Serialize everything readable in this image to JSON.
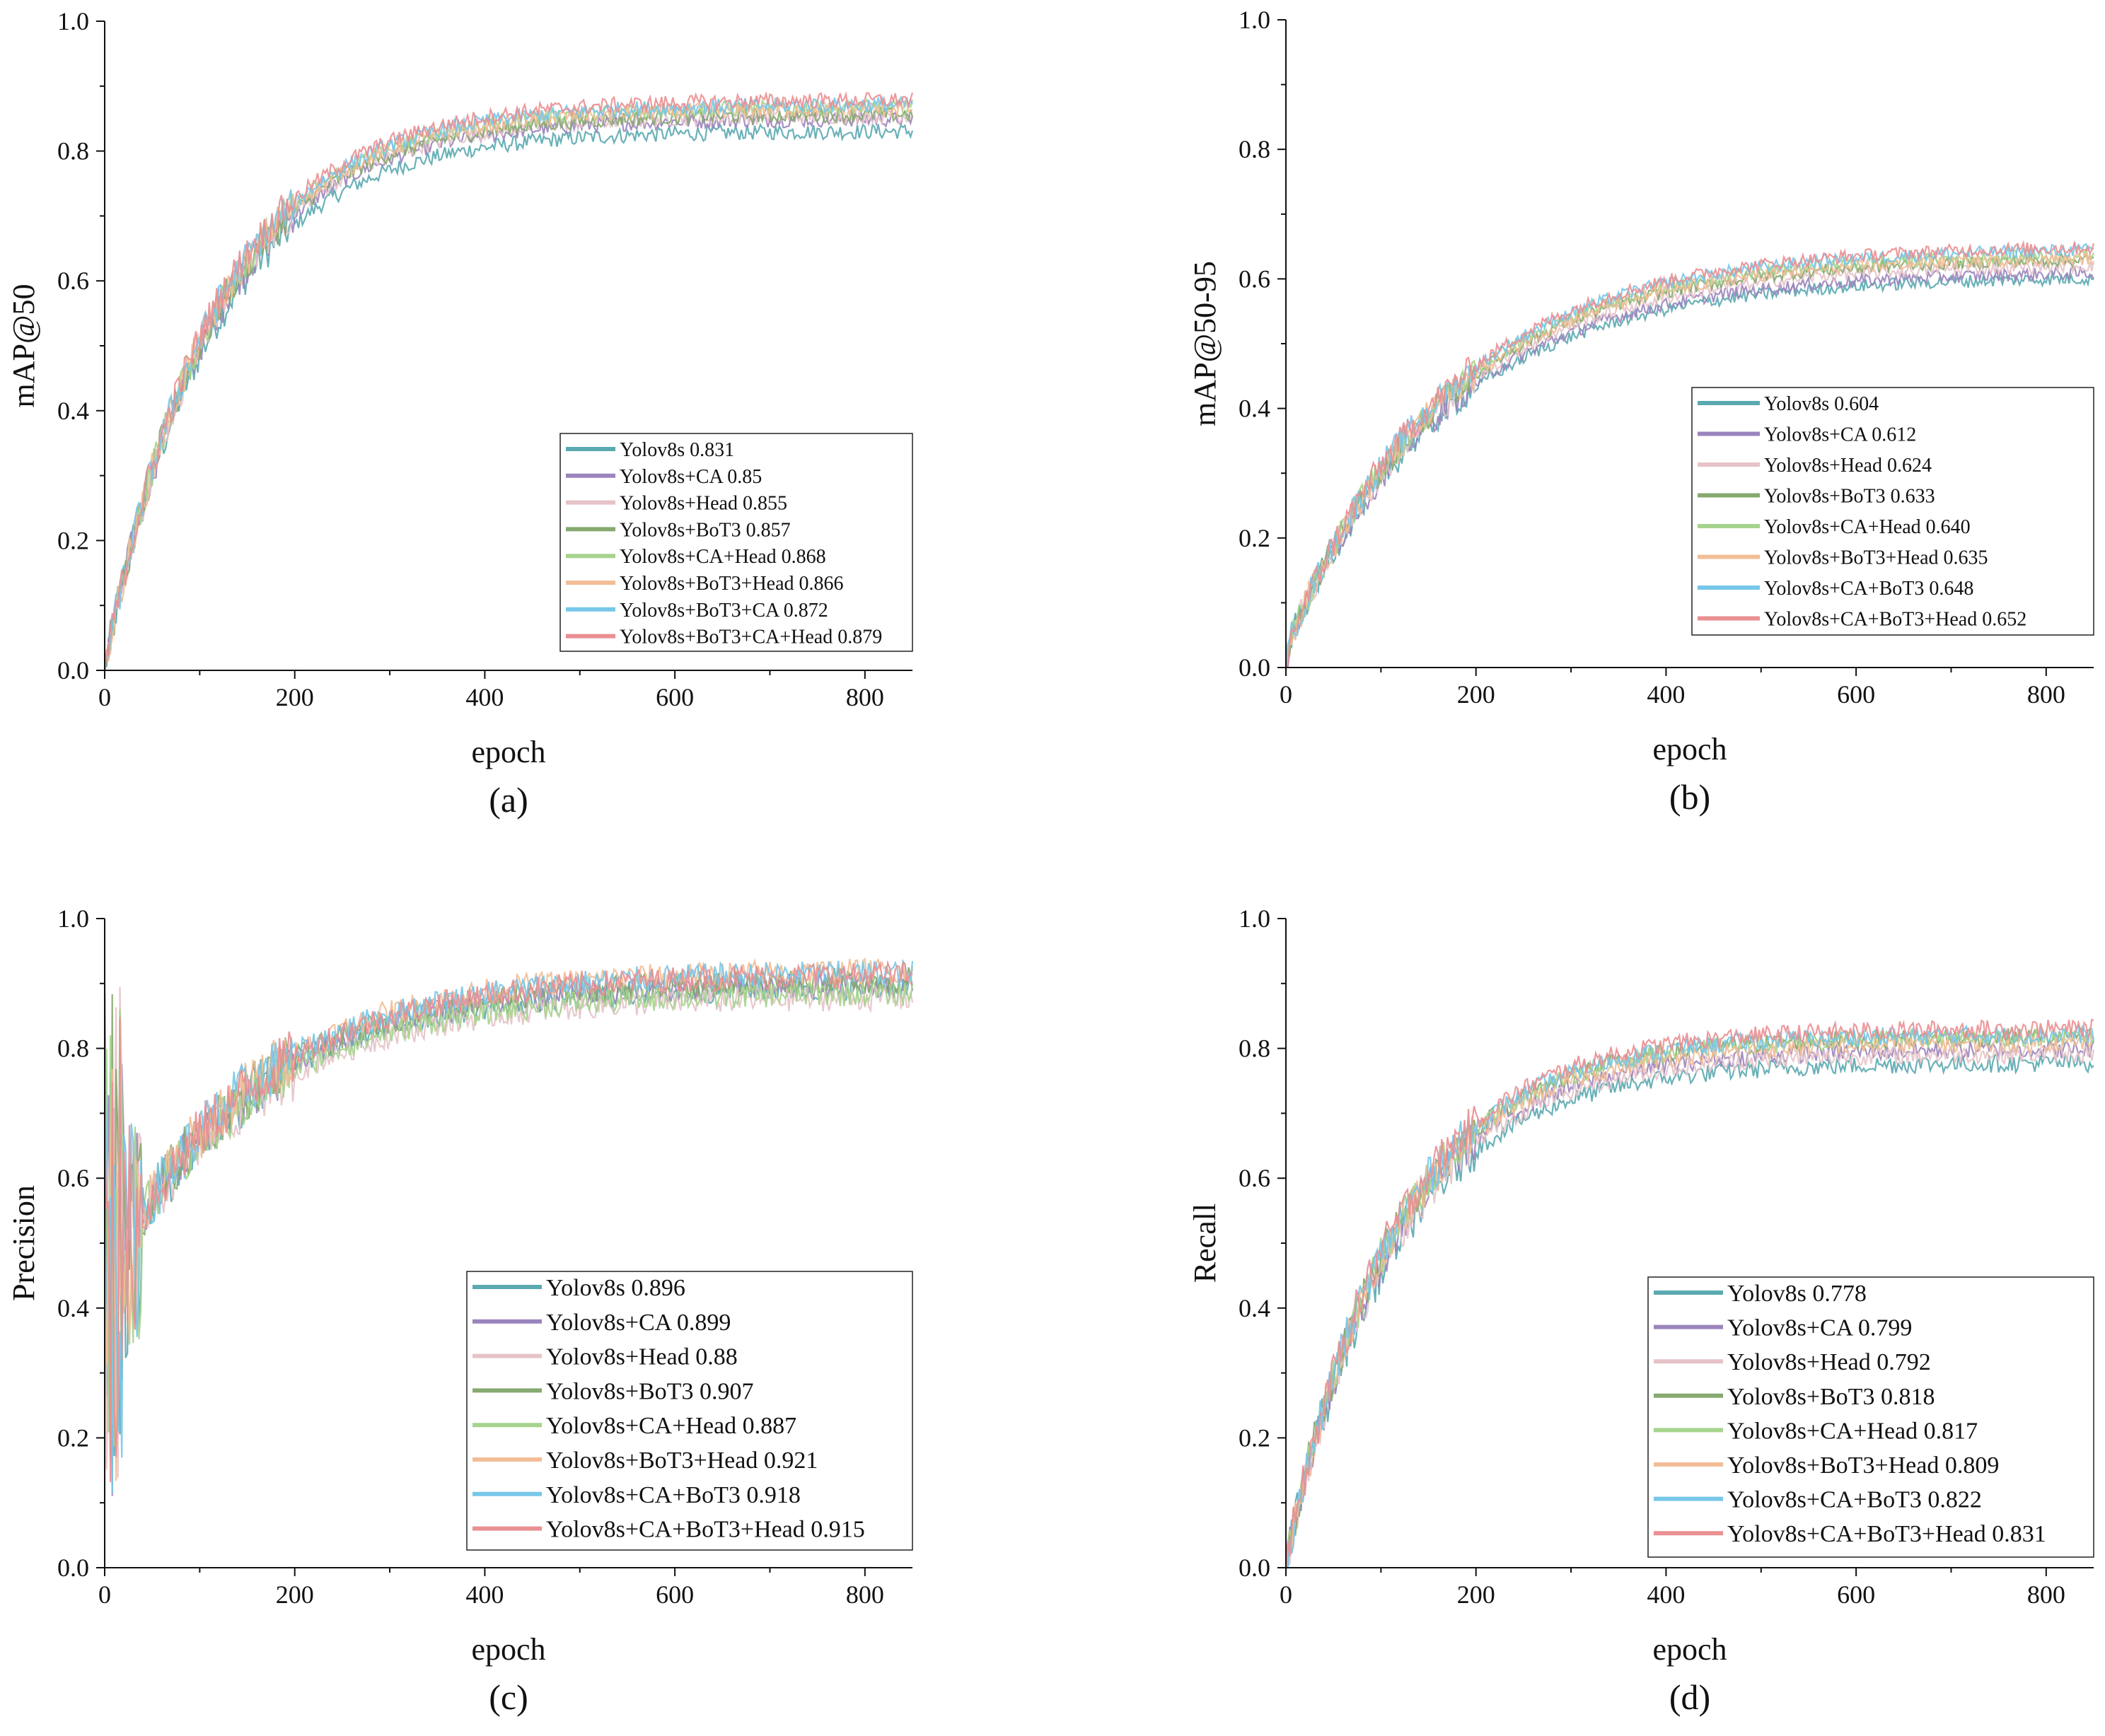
{
  "figure": {
    "colors": {
      "Yolov8s": "#5aa9b0",
      "Yolov8s+CA": "#9b84bd",
      "Yolov8s+Head": "#e6c3c8",
      "Yolov8s+BoT3": "#86a96f",
      "Yolov8s+CA+Head": "#a6d38d",
      "Yolov8s+BoT3+Head": "#f2bd96",
      "Yolov8s+CA+BoT3": "#77c7e8",
      "Yolov8s+BoT3+CA": "#77c7e8",
      "Yolov8s+CA+BoT3+Head": "#ea8f92",
      "Yolov8s+BoT3+CA+Head": "#ea8f92"
    }
  },
  "chart_data": [
    {
      "id": "a",
      "type": "line",
      "panel_label": "(a)",
      "xlabel": "epoch",
      "ylabel": "mAP@50",
      "xlim": [
        0,
        850
      ],
      "ylim": [
        0,
        1.0
      ],
      "xticks": [
        "0",
        "200",
        "400",
        "600",
        "800"
      ],
      "yticks": [
        "0.0",
        "0.2",
        "0.4",
        "0.6",
        "0.8",
        "1.0"
      ],
      "legend_position": "lower-right",
      "curve_shape": "saturating",
      "noise": 0.012,
      "series": [
        {
          "name": "Yolov8s",
          "label": "Yolov8s  0.831",
          "final": 0.831
        },
        {
          "name": "Yolov8s+CA",
          "label": "Yolov8s+CA  0.85",
          "final": 0.85
        },
        {
          "name": "Yolov8s+Head",
          "label": "Yolov8s+Head  0.855",
          "final": 0.855
        },
        {
          "name": "Yolov8s+BoT3",
          "label": "Yolov8s+BoT3  0.857",
          "final": 0.857
        },
        {
          "name": "Yolov8s+CA+Head",
          "label": "Yolov8s+CA+Head  0.868",
          "final": 0.868
        },
        {
          "name": "Yolov8s+BoT3+Head",
          "label": "Yolov8s+BoT3+Head  0.866",
          "final": 0.866
        },
        {
          "name": "Yolov8s+BoT3+CA",
          "label": "Yolov8s+BoT3+CA  0.872",
          "final": 0.872
        },
        {
          "name": "Yolov8s+BoT3+CA+Head",
          "label": "Yolov8s+BoT3+CA+Head  0.879",
          "final": 0.879
        }
      ]
    },
    {
      "id": "b",
      "type": "line",
      "panel_label": "(b)",
      "xlabel": "epoch",
      "ylabel": "mAP@50-95",
      "xlim": [
        0,
        850
      ],
      "ylim": [
        0,
        1.0
      ],
      "xticks": [
        "0",
        "200",
        "400",
        "600",
        "800"
      ],
      "yticks": [
        "0.0",
        "0.2",
        "0.4",
        "0.6",
        "0.8",
        "1.0"
      ],
      "legend_position": "lower-right",
      "curve_shape": "saturating-slow",
      "noise": 0.01,
      "series": [
        {
          "name": "Yolov8s",
          "label": "Yolov8s  0.604",
          "final": 0.604
        },
        {
          "name": "Yolov8s+CA",
          "label": "Yolov8s+CA  0.612",
          "final": 0.612
        },
        {
          "name": "Yolov8s+Head",
          "label": "Yolov8s+Head  0.624",
          "final": 0.624
        },
        {
          "name": "Yolov8s+BoT3",
          "label": "Yolov8s+BoT3  0.633",
          "final": 0.633
        },
        {
          "name": "Yolov8s+CA+Head",
          "label": "Yolov8s+CA+Head  0.640",
          "final": 0.64
        },
        {
          "name": "Yolov8s+BoT3+Head",
          "label": "Yolov8s+BoT3+Head  0.635",
          "final": 0.635
        },
        {
          "name": "Yolov8s+CA+BoT3",
          "label": "Yolov8s+CA+BoT3  0.648",
          "final": 0.648
        },
        {
          "name": "Yolov8s+CA+BoT3+Head",
          "label": "Yolov8s+CA+BoT3+Head  0.652",
          "final": 0.652
        }
      ]
    },
    {
      "id": "c",
      "type": "line",
      "panel_label": "(c)",
      "xlabel": "epoch",
      "ylabel": "Precision",
      "xlim": [
        0,
        850
      ],
      "ylim": [
        0,
        1.0
      ],
      "xticks": [
        "0",
        "200",
        "400",
        "600",
        "800"
      ],
      "yticks": [
        "0.0",
        "0.2",
        "0.4",
        "0.6",
        "0.8",
        "1.0"
      ],
      "legend_position": "lower-right",
      "curve_shape": "precision",
      "noise": 0.02,
      "series": [
        {
          "name": "Yolov8s",
          "label": "Yolov8s 0.896",
          "final": 0.896
        },
        {
          "name": "Yolov8s+CA",
          "label": "Yolov8s+CA 0.899",
          "final": 0.899
        },
        {
          "name": "Yolov8s+Head",
          "label": "Yolov8s+Head 0.88",
          "final": 0.88
        },
        {
          "name": "Yolov8s+BoT3",
          "label": "Yolov8s+BoT3 0.907",
          "final": 0.907
        },
        {
          "name": "Yolov8s+CA+Head",
          "label": "Yolov8s+CA+Head 0.887",
          "final": 0.887
        },
        {
          "name": "Yolov8s+BoT3+Head",
          "label": "Yolov8s+BoT3+Head 0.921",
          "final": 0.921
        },
        {
          "name": "Yolov8s+CA+BoT3",
          "label": "Yolov8s+CA+BoT3 0.918",
          "final": 0.918
        },
        {
          "name": "Yolov8s+CA+BoT3+Head",
          "label": "Yolov8s+CA+BoT3+Head 0.915",
          "final": 0.915
        }
      ]
    },
    {
      "id": "d",
      "type": "line",
      "panel_label": "(d)",
      "xlabel": "epoch",
      "ylabel": "Recall",
      "xlim": [
        0,
        850
      ],
      "ylim": [
        0,
        1.0
      ],
      "xticks": [
        "0",
        "200",
        "400",
        "600",
        "800"
      ],
      "yticks": [
        "0.0",
        "0.2",
        "0.4",
        "0.6",
        "0.8",
        "1.0"
      ],
      "legend_position": "lower-right",
      "curve_shape": "saturating",
      "noise": 0.014,
      "series": [
        {
          "name": "Yolov8s",
          "label": "Yolov8s 0.778",
          "final": 0.778
        },
        {
          "name": "Yolov8s+CA",
          "label": "Yolov8s+CA 0.799",
          "final": 0.799
        },
        {
          "name": "Yolov8s+Head",
          "label": "Yolov8s+Head 0.792",
          "final": 0.792
        },
        {
          "name": "Yolov8s+BoT3",
          "label": "Yolov8s+BoT3 0.818",
          "final": 0.818
        },
        {
          "name": "Yolov8s+CA+Head",
          "label": "Yolov8s+CA+Head 0.817",
          "final": 0.817
        },
        {
          "name": "Yolov8s+BoT3+Head",
          "label": "Yolov8s+BoT3+Head 0.809",
          "final": 0.809
        },
        {
          "name": "Yolov8s+CA+BoT3",
          "label": "Yolov8s+CA+BoT3 0.822",
          "final": 0.822
        },
        {
          "name": "Yolov8s+CA+BoT3+Head",
          "label": "Yolov8s+CA+BoT3+Head 0.831",
          "final": 0.831
        }
      ]
    }
  ]
}
